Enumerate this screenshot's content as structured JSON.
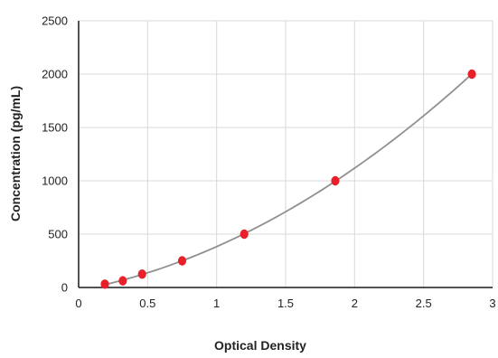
{
  "chart_data": {
    "type": "scatter",
    "title": "",
    "xlabel": "Optical Density",
    "ylabel": "Concentration (pg/mL)",
    "xlim": [
      0,
      3
    ],
    "ylim": [
      0,
      2500
    ],
    "x_ticks": [
      "0",
      "0.5",
      "1",
      "1.5",
      "2",
      "2.5",
      "3"
    ],
    "y_ticks": [
      "0",
      "500",
      "1000",
      "1500",
      "2000",
      "2500"
    ],
    "grid": true,
    "legend": "none",
    "series": [
      {
        "x": [
          0.19,
          0.32,
          0.46,
          0.75,
          1.2,
          1.86,
          2.85
        ],
        "y": [
          31.25,
          62.5,
          125,
          250,
          500,
          1000,
          2000
        ],
        "marker_color": "#e8202a",
        "fit_line_color": "#909090",
        "fit": "quadratic"
      }
    ]
  }
}
